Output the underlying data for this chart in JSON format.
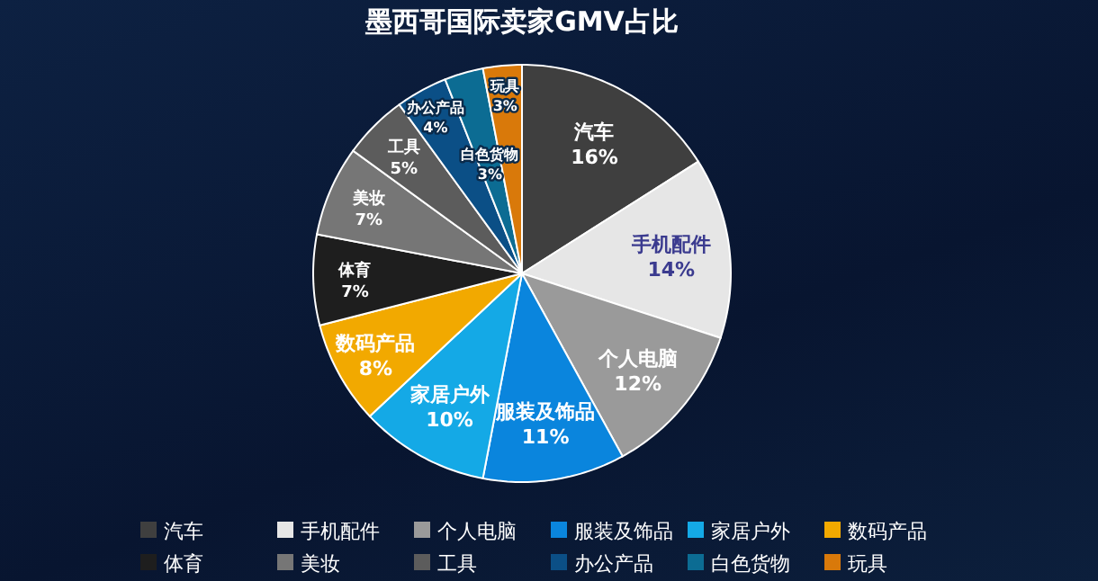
{
  "chart_data": {
    "type": "pie",
    "title": "墨西哥国际卖家GMV占比",
    "categories": [
      "汽车",
      "手机配件",
      "个人电脑",
      "服装及饰品",
      "家居户外",
      "数码产品",
      "体育",
      "美妆",
      "工具",
      "办公产品",
      "白色货物",
      "玩具"
    ],
    "values": [
      16,
      14,
      12,
      11,
      10,
      8,
      7,
      7,
      5,
      4,
      3,
      3
    ],
    "colors": [
      "#3f3f3f",
      "#e6e6e6",
      "#9a9a9a",
      "#0a85dd",
      "#14a9e6",
      "#f2a900",
      "#1e1e1e",
      "#767676",
      "#5c5c5c",
      "#0b4f86",
      "#0c6c93",
      "#d9790a"
    ],
    "value_labels": [
      "16%",
      "14%",
      "12%",
      "11%",
      "10%",
      "8%",
      "7%",
      "7%",
      "5%",
      "4%",
      "3%",
      "3%"
    ],
    "legend": "bottom"
  }
}
